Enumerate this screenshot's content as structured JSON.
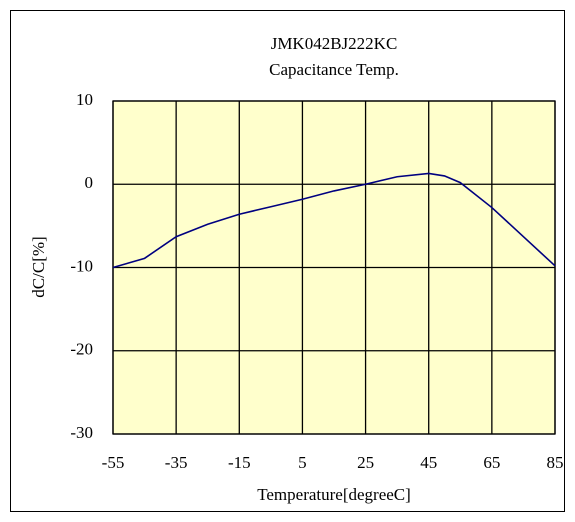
{
  "chart_data": {
    "type": "line",
    "title": "JMK042BJ222KC",
    "subtitle": "Capacitance Temp.",
    "x_label": "Temperature[degreeC]",
    "y_label": "dC/C[%]",
    "x": [
      -55,
      -45,
      -35,
      -25,
      -15,
      -5,
      5,
      15,
      25,
      35,
      45,
      50,
      55,
      65,
      75,
      85
    ],
    "series": [
      {
        "name": "JMK042BJ222KC",
        "color": "#000080",
        "values": [
          -10,
          -8.9,
          -6.3,
          -4.8,
          -3.6,
          -2.7,
          -1.8,
          -0.8,
          0,
          0.9,
          1.3,
          1.0,
          0.2,
          -2.8,
          -6.3,
          -9.8
        ]
      }
    ],
    "xlim": [
      -55,
      85
    ],
    "xticks": [
      -55,
      -35,
      -15,
      5,
      25,
      45,
      65,
      85
    ],
    "ylim": [
      -30,
      10
    ],
    "yticks": [
      -30,
      -20,
      -10,
      0,
      10
    ],
    "grid": true,
    "plot_background": "#ffffcc"
  }
}
